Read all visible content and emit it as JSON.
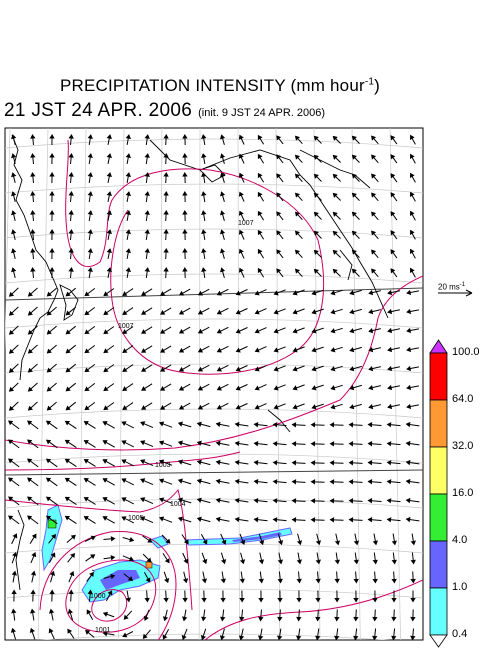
{
  "title": {
    "main": "PRECIPITATION INTENSITY (mm hour",
    "exponent": "-1",
    "close": ")"
  },
  "subtitle": {
    "valid_time": "21 JST 24 APR. 2006",
    "init": "(init. 9 JST 24 APR. 2006)"
  },
  "wind_scale": {
    "value": "20 ms",
    "exponent": "-1"
  },
  "colorbar": {
    "labels": [
      "100.0",
      "64.0",
      "32.0",
      "16.0",
      "4.0",
      "1.0",
      "0.4"
    ],
    "colors": [
      "#ff0000",
      "#ff9933",
      "#ffff66",
      "#33ee33",
      "#6666ff",
      "#66ffff"
    ],
    "overflow_color": "#cc33ff"
  },
  "contours": {
    "color": "#cc0066",
    "labels": [
      "1007",
      "1003",
      "1005",
      "1004",
      "1000",
      "1001"
    ]
  }
}
